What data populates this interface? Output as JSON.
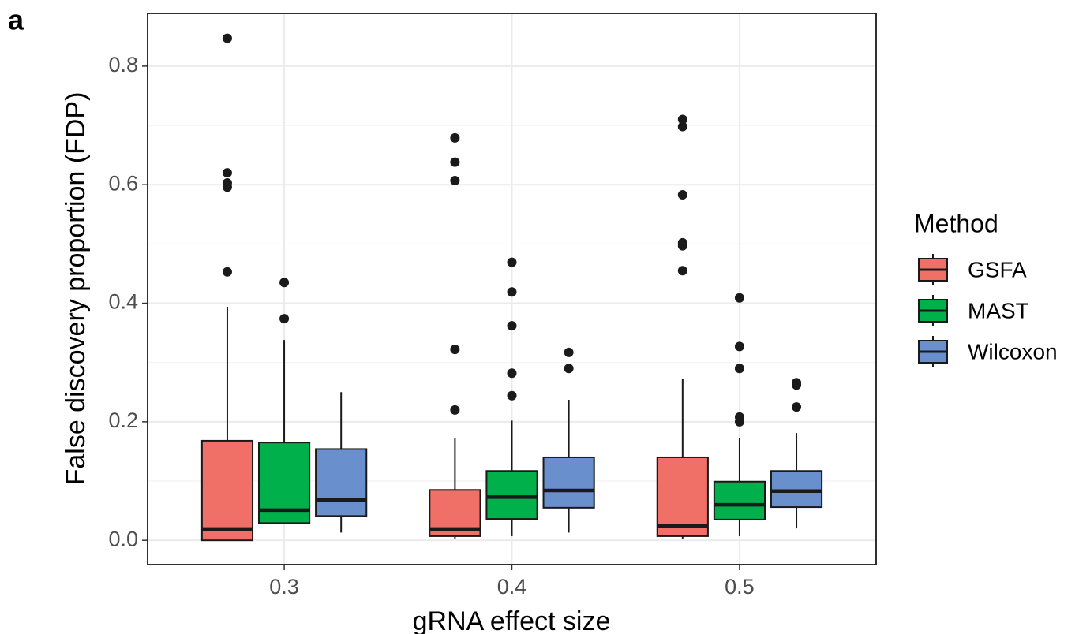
{
  "panel_label": "a",
  "chart_data": {
    "type": "boxplot",
    "x_label": "gRNA effect size",
    "y_label": "False discovery proportion (FDP)",
    "legend_title": "Method",
    "legend_position": "right",
    "categories": [
      "0.3",
      "0.4",
      "0.5"
    ],
    "ylim": [
      -0.041,
      0.889
    ],
    "yticks": [
      {
        "value": 0,
        "label": "0.0"
      },
      0.2,
      0.4,
      0.6,
      0.8
    ],
    "minor_yticks": [
      0.1,
      0.3,
      0.5,
      0.7
    ],
    "grid": true,
    "series": [
      {
        "name": "GSFA",
        "color": "#f07067",
        "min": [
          0.0,
          0.003,
          0.003
        ],
        "q1": [
          0.0,
          0.007,
          0.007
        ],
        "median": [
          0.019,
          0.019,
          0.024
        ],
        "q3": [
          0.168,
          0.085,
          0.14
        ],
        "max": [
          0.394,
          0.172,
          0.272
        ],
        "outliers": [
          [
            0.453,
            0.596,
            0.603,
            0.62,
            0.847
          ],
          [
            0.22,
            0.322,
            0.607,
            0.638,
            0.679
          ],
          [
            0.455,
            0.497,
            0.502,
            0.583,
            0.698,
            0.71
          ]
        ]
      },
      {
        "name": "MAST",
        "color": "#00b04a",
        "min": [
          0.029,
          0.007,
          0.007
        ],
        "q1": [
          0.029,
          0.036,
          0.035
        ],
        "median": [
          0.051,
          0.073,
          0.06
        ],
        "q3": [
          0.165,
          0.117,
          0.099
        ],
        "max": [
          0.338,
          0.202,
          0.172
        ],
        "outliers": [
          [
            0.374,
            0.435
          ],
          [
            0.244,
            0.282,
            0.362,
            0.419,
            0.469
          ],
          [
            0.2,
            0.208,
            0.29,
            0.327,
            0.409
          ]
        ]
      },
      {
        "name": "Wilcoxon",
        "color": "#6a8fcd",
        "min": [
          0.013,
          0.013,
          0.02
        ],
        "q1": [
          0.041,
          0.055,
          0.056
        ],
        "median": [
          0.068,
          0.084,
          0.083
        ],
        "q3": [
          0.154,
          0.14,
          0.117
        ],
        "max": [
          0.25,
          0.237,
          0.181
        ],
        "outliers": [
          [],
          [
            0.29,
            0.317
          ],
          [
            0.225,
            0.262,
            0.266
          ]
        ]
      }
    ]
  }
}
